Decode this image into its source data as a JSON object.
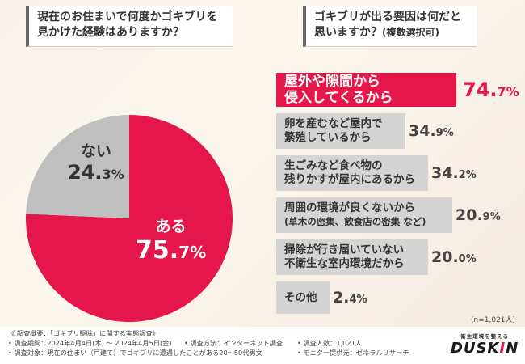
{
  "questions": {
    "q1": [
      "現在のお住まいで何度かゴキブリを",
      "見かけた経験はありますか？"
    ],
    "q2_line1": "ゴキブリが出る要因は何だと",
    "q2_line2": "思いますか？",
    "q2_sub": "(複数選択可)"
  },
  "colors": {
    "accent": "#e5174a",
    "grey": "#d4d4d4",
    "grey_pie": "#bfbfbf"
  },
  "chart_data": [
    {
      "type": "pie",
      "title": "現在のお住まいで何度かゴキブリを見かけた経験はありますか？",
      "slices": [
        {
          "label": "ある",
          "value": 75.7,
          "int": "75.",
          "frac": "7%",
          "color": "#e5174a"
        },
        {
          "label": "ない",
          "value": 24.3,
          "int": "24.",
          "frac": "3%",
          "color": "#bfbfbf"
        }
      ]
    },
    {
      "type": "bar",
      "title": "ゴキブリが出る要因は何だと思いますか？(複数選択可)",
      "note": "(n=1,021人)",
      "categories": [
        {
          "lines": [
            "屋外や隙間から",
            "侵入してくるから"
          ],
          "value": 74.7,
          "int": "74.",
          "frac": "7%"
        },
        {
          "lines": [
            "卵を産むなど屋内で",
            "繁殖しているから"
          ],
          "value": 34.9,
          "int": "34.",
          "frac": "9%"
        },
        {
          "lines": [
            "生ごみなど食べ物の",
            "残りかすが屋内にあるから"
          ],
          "value": 34.2,
          "int": "34.",
          "frac": "2%"
        },
        {
          "lines": [
            "周囲の環境が良くないから",
            "(草木の密集、飲食店の密集 など)"
          ],
          "value": 20.9,
          "int": "20.",
          "frac": "9%"
        },
        {
          "lines": [
            "掃除が行き届いていない",
            "不衛生な室内環境だから"
          ],
          "value": 20.0,
          "int": "20.",
          "frac": "0%"
        },
        {
          "lines": [
            "その他"
          ],
          "value": 2.4,
          "int": "2.",
          "frac": "4%"
        }
      ]
    }
  ],
  "footer": {
    "overview": "《 調査概要：「ゴキブリ駆除」に関する実態調査》",
    "period": "• 調査期間：2024年4月4日(木) ～ 2024年4月5日(金)",
    "method": "• 調査方法：インターネット調査",
    "count": "• 調査人数：1,021人",
    "target": "• 調査対象：現在の住まい（戸建て）でゴキブリに遭遇したことがある20～50代男女",
    "provider": "• モニター提供元：ゼネラルリサーチ"
  },
  "logo": {
    "tagline": "衛生環境を整える",
    "word_a": "DUSK",
    "word_b": "I",
    "word_c": "N"
  }
}
